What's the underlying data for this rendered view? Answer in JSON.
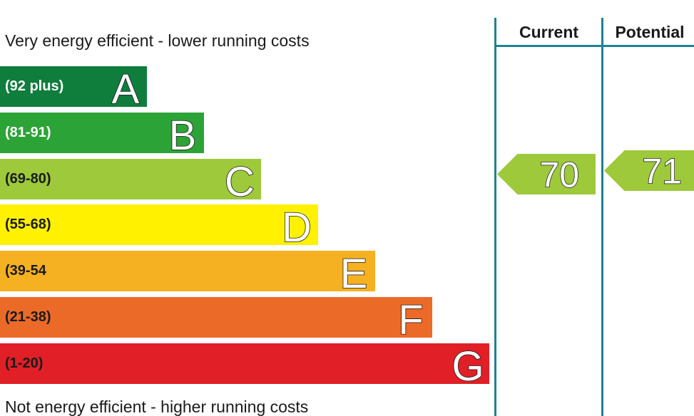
{
  "chart_data": {
    "type": "bar",
    "top_caption": "Very energy efficient - lower running costs",
    "bottom_caption": "Not energy efficient - higher running costs",
    "bands": [
      {
        "letter": "A",
        "range": "(92 plus)",
        "min": 92,
        "max": null,
        "color": "#0f7d3b",
        "range_color": "#ffffff"
      },
      {
        "letter": "B",
        "range": "(81-91)",
        "min": 81,
        "max": 91,
        "color": "#2ca337",
        "range_color": "#ffffff"
      },
      {
        "letter": "C",
        "range": "(69-80)",
        "min": 69,
        "max": 80,
        "color": "#9dc93b",
        "range_color": "#1a1a1a"
      },
      {
        "letter": "D",
        "range": "(55-68)",
        "min": 55,
        "max": 68,
        "color": "#fff100",
        "range_color": "#1a1a1a"
      },
      {
        "letter": "E",
        "range": "(39-54",
        "min": 39,
        "max": 54,
        "color": "#f6b122",
        "range_color": "#1a1a1a"
      },
      {
        "letter": "F",
        "range": "(21-38)",
        "min": 21,
        "max": 38,
        "color": "#ec6a27",
        "range_color": "#1a1a1a"
      },
      {
        "letter": "G",
        "range": "(1-20)",
        "min": 1,
        "max": 20,
        "color": "#e11f26",
        "range_color": "#1a1a1a"
      }
    ],
    "columns": [
      {
        "header": "Current",
        "value": 70,
        "band": "C",
        "color": "#9dc93b"
      },
      {
        "header": "Potential",
        "value": 71,
        "band": "C",
        "color": "#9dc93b"
      }
    ],
    "rule_color": "#1f8194"
  }
}
